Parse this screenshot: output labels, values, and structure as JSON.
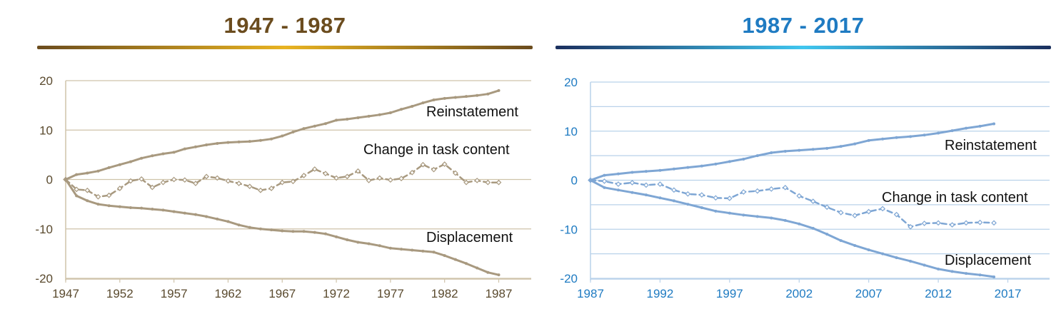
{
  "colors": {
    "left_title": "#6b4c1e",
    "left_rule": [
      "#6b4c1e",
      "#e8b321",
      "#6b4c1e"
    ],
    "left_series": "#a8997f",
    "left_grid": "#cfc3aa",
    "left_axis_text": "#5a4a2e",
    "right_title": "#1f7bc2",
    "right_rule": [
      "#1b2f5e",
      "#40c6ef",
      "#1b2f5e"
    ],
    "right_series": "#7ea6d4",
    "right_grid": "#b9d2ea",
    "right_axis_text": "#1f7bc2"
  },
  "chart_data": [
    {
      "type": "line",
      "title": "1947 - 1987",
      "xlim": [
        1947,
        1990
      ],
      "ylim": [
        -20,
        20
      ],
      "xticks": [
        "1947",
        "1952",
        "1957",
        "1962",
        "1967",
        "1972",
        "1977",
        "1982",
        "1987"
      ],
      "yticks": [
        "20",
        "10",
        "0",
        "-10",
        "-20"
      ],
      "x": [
        1947,
        1948,
        1949,
        1950,
        1951,
        1952,
        1953,
        1954,
        1955,
        1956,
        1957,
        1958,
        1959,
        1960,
        1961,
        1962,
        1963,
        1964,
        1965,
        1966,
        1967,
        1968,
        1969,
        1970,
        1971,
        1972,
        1973,
        1974,
        1975,
        1976,
        1977,
        1978,
        1979,
        1980,
        1981,
        1982,
        1983,
        1984,
        1985,
        1986,
        1987
      ],
      "series": [
        {
          "name": "Reinstatement",
          "style": "solid",
          "values": [
            0,
            1,
            1.3,
            1.7,
            2.4,
            3,
            3.6,
            4.3,
            4.8,
            5.2,
            5.5,
            6.2,
            6.6,
            7,
            7.3,
            7.5,
            7.6,
            7.7,
            7.9,
            8.2,
            8.8,
            9.6,
            10.3,
            10.8,
            11.3,
            12,
            12.2,
            12.5,
            12.8,
            13.1,
            13.5,
            14.2,
            14.8,
            15.5,
            16.1,
            16.4,
            16.6,
            16.8,
            17,
            17.3,
            18
          ]
        },
        {
          "name": "Change in task content",
          "style": "dashed",
          "values": [
            0,
            -2,
            -2.2,
            -3.5,
            -3.2,
            -1.8,
            -0.3,
            0.1,
            -1.6,
            -0.6,
            0,
            -0.1,
            -0.8,
            0.6,
            0.3,
            -0.3,
            -0.8,
            -1.4,
            -2.2,
            -1.8,
            -0.6,
            -0.4,
            0.8,
            2.1,
            1.2,
            0.3,
            0.6,
            1.7,
            -0.2,
            0.3,
            -0.1,
            0.2,
            1.4,
            3,
            2,
            3.1,
            1.3,
            -0.6,
            -0.2,
            -0.6,
            -0.6
          ]
        },
        {
          "name": "Displacement",
          "style": "solid",
          "values": [
            0,
            -3.3,
            -4.3,
            -5,
            -5.3,
            -5.5,
            -5.7,
            -5.8,
            -6,
            -6.2,
            -6.5,
            -6.8,
            -7.1,
            -7.5,
            -8,
            -8.5,
            -9.2,
            -9.7,
            -10,
            -10.2,
            -10.4,
            -10.5,
            -10.5,
            -10.7,
            -11,
            -11.6,
            -12.2,
            -12.7,
            -13,
            -13.4,
            -13.9,
            -14.1,
            -14.3,
            -14.5,
            -14.7,
            -15.4,
            -16.2,
            -17,
            -17.9,
            -18.8,
            -19.3
          ]
        }
      ],
      "labels": [
        "Reinstatement",
        "Change in task content",
        "Displacement"
      ]
    },
    {
      "type": "line",
      "title": "1987 - 2017",
      "xlim": [
        1987,
        2020
      ],
      "ylim": [
        -20,
        20
      ],
      "xticks": [
        "1987",
        "1992",
        "1997",
        "2002",
        "2007",
        "2012",
        "2017"
      ],
      "yticks": [
        "20",
        "10",
        "0",
        "-10",
        "-20"
      ],
      "x": [
        1987,
        1988,
        1989,
        1990,
        1991,
        1992,
        1993,
        1994,
        1995,
        1996,
        1997,
        1998,
        1999,
        2000,
        2001,
        2002,
        2003,
        2004,
        2005,
        2006,
        2007,
        2008,
        2009,
        2010,
        2011,
        2012,
        2013,
        2014,
        2015,
        2016
      ],
      "series": [
        {
          "name": "Reinstatement",
          "style": "solid",
          "values": [
            0,
            1,
            1.3,
            1.6,
            1.8,
            2,
            2.3,
            2.6,
            2.9,
            3.3,
            3.8,
            4.3,
            5,
            5.6,
            5.9,
            6.1,
            6.3,
            6.5,
            6.9,
            7.4,
            8.1,
            8.4,
            8.7,
            8.9,
            9.2,
            9.6,
            10.1,
            10.6,
            11,
            11.5
          ]
        },
        {
          "name": "Change in task content",
          "style": "dashed",
          "values": [
            0,
            -0.2,
            -0.8,
            -0.5,
            -1,
            -0.8,
            -2,
            -2.8,
            -3,
            -3.6,
            -3.7,
            -2.4,
            -2.2,
            -1.8,
            -1.5,
            -3.2,
            -4.3,
            -5.5,
            -6.6,
            -7.2,
            -6.4,
            -5.8,
            -7,
            -9.5,
            -8.8,
            -8.7,
            -9.1,
            -8.7,
            -8.6,
            -8.7
          ]
        },
        {
          "name": "Displacement",
          "style": "solid",
          "values": [
            0,
            -1.5,
            -2,
            -2.5,
            -3,
            -3.6,
            -4.2,
            -4.9,
            -5.6,
            -6.3,
            -6.7,
            -7.1,
            -7.4,
            -7.7,
            -8.2,
            -8.9,
            -9.8,
            -11,
            -12.3,
            -13.3,
            -14.2,
            -15,
            -15.8,
            -16.5,
            -17.3,
            -18.1,
            -18.6,
            -19,
            -19.3,
            -19.7
          ]
        }
      ],
      "labels": [
        "Reinstatement",
        "Change in task content",
        "Displacement"
      ]
    }
  ]
}
